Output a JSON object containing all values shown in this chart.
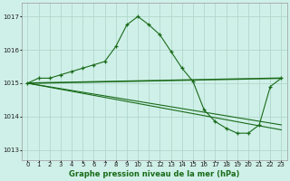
{
  "title": "Graphe pression niveau de la mer (hPa)",
  "background_color": "#cff0e8",
  "grid_color": "#b0d8cc",
  "line_color": "#1a6b1a",
  "xlim": [
    -0.5,
    23.5
  ],
  "ylim": [
    1012.7,
    1017.4
  ],
  "yticks": [
    1013,
    1014,
    1015,
    1016,
    1017
  ],
  "xticks": [
    0,
    1,
    2,
    3,
    4,
    5,
    6,
    7,
    8,
    9,
    10,
    11,
    12,
    13,
    14,
    15,
    16,
    17,
    18,
    19,
    20,
    21,
    22,
    23
  ],
  "series_main": {
    "x": [
      0,
      1,
      2,
      3,
      4,
      5,
      6,
      7,
      8,
      9,
      10,
      11,
      12,
      13,
      14,
      15,
      16,
      17,
      18,
      19,
      20,
      21,
      22,
      23
    ],
    "y": [
      1015.0,
      1015.15,
      1015.15,
      1015.25,
      1015.35,
      1015.45,
      1015.55,
      1015.65,
      1016.1,
      1016.75,
      1017.0,
      1016.75,
      1016.45,
      1015.95,
      1015.45,
      1015.05,
      1014.2,
      1013.85,
      1013.65,
      1013.5,
      1013.5,
      1013.75,
      1014.9,
      1015.15
    ]
  },
  "series_flat": {
    "x": [
      0,
      23
    ],
    "y": [
      1015.0,
      1015.15
    ]
  },
  "series_decline1": {
    "x": [
      0,
      23
    ],
    "y": [
      1015.0,
      1013.6
    ]
  },
  "series_decline2": {
    "x": [
      0,
      23
    ],
    "y": [
      1015.0,
      1013.75
    ]
  }
}
